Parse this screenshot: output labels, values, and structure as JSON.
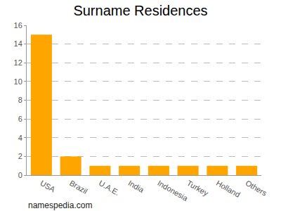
{
  "chart_data": {
    "type": "bar",
    "title": "Surname Residences",
    "categories": [
      "USA",
      "Brazil",
      "U.A.E.",
      "India",
      "Indonesia",
      "Turkey",
      "Holland",
      "Others"
    ],
    "values": [
      15,
      2,
      1,
      1,
      1,
      1,
      1,
      1
    ],
    "color": "#ffa500",
    "ylim": [
      0,
      16
    ],
    "yticks": [
      0,
      2,
      4,
      6,
      8,
      10,
      12,
      14,
      16
    ],
    "grid": true,
    "annotations": [
      "namespedia.com"
    ]
  }
}
